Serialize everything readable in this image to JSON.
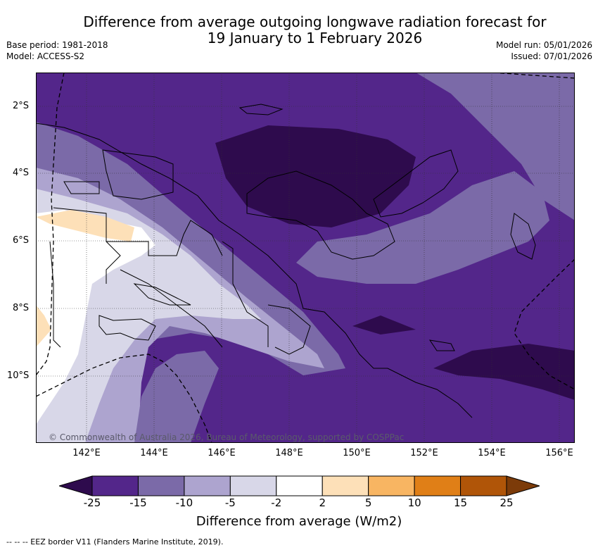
{
  "title_line1": "Difference from average outgoing longwave radiation forecast for",
  "title_line2": "19 January to 1 February 2026",
  "base_period": "Base period: 1981-2018",
  "model": "Model: ACCESS-S2",
  "model_run": "Model run: 05/01/2026",
  "issued": "Issued: 07/01/2026",
  "lat_labels": [
    "2°S",
    "4°S",
    "6°S",
    "8°S",
    "10°S"
  ],
  "lon_labels": [
    "142°E",
    "144°E",
    "146°E",
    "148°E",
    "150°E",
    "152°E",
    "154°E",
    "156°E"
  ],
  "copyright": "© Commonwealth of Australia 2026, Bureau of Meteorology, supported by COSPPac",
  "colorbar": {
    "ticks": [
      "-25",
      "-15",
      "-10",
      "-5",
      "-2",
      "2",
      "5",
      "10",
      "15",
      "25"
    ],
    "colors": [
      "#2e0b4d",
      "#53268a",
      "#7b6aa8",
      "#ada4cf",
      "#d8d7e8",
      "#ffffff",
      "#fde0b8",
      "#f8b562",
      "#e07f17",
      "#b05508",
      "#7c3b09"
    ],
    "label": "Difference from average (W/m2)"
  },
  "footnote": "--  --  -- EEZ border V11 (Flanders Marine Institute, 2019)."
}
